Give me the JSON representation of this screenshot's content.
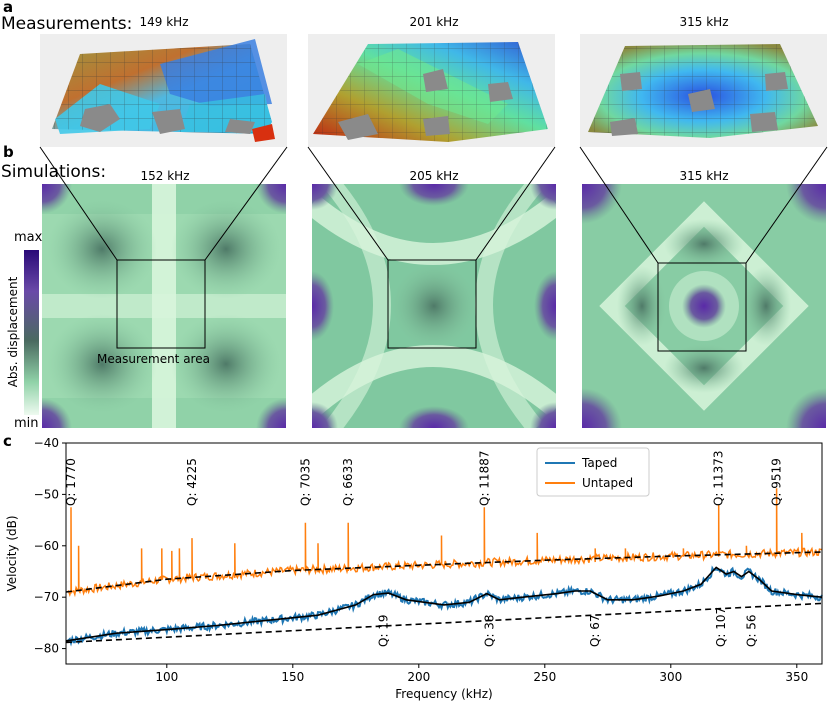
{
  "panel_a": {
    "letter": "a",
    "title": "Measurements:",
    "tiles": [
      {
        "freq": "149 kHz"
      },
      {
        "freq": "201 kHz"
      },
      {
        "freq": "315 kHz"
      }
    ]
  },
  "panel_b": {
    "letter": "b",
    "title": "Simulations:",
    "tiles": [
      {
        "freq": "152 kHz"
      },
      {
        "freq": "205 kHz"
      },
      {
        "freq": "315 kHz"
      }
    ],
    "measurement_area_label": "Measurement area",
    "colorbar": {
      "label": "Abs. displacement",
      "max": "max",
      "min": "min"
    }
  },
  "panel_c": {
    "letter": "c"
  },
  "chart_data": {
    "type": "line",
    "title": "",
    "xlabel": "Frequency (kHz)",
    "ylabel": "Velocity (dB)",
    "xlim": [
      60,
      360
    ],
    "ylim": [
      -83,
      -40
    ],
    "xticks": [
      100,
      150,
      200,
      250,
      300,
      350
    ],
    "yticks": [
      -80,
      -70,
      -60,
      -50,
      -40
    ],
    "legend": {
      "position": "top-right",
      "entries": [
        "Taped",
        "Untaped"
      ]
    },
    "series": [
      {
        "name": "Untaped",
        "color": "#ff7f0e",
        "baseline": {
          "x": [
            60,
            100,
            150,
            200,
            250,
            300,
            360
          ],
          "y": [
            -69,
            -66.5,
            -64.8,
            -63.8,
            -62.8,
            -62,
            -61.2
          ]
        },
        "peaks": [
          {
            "x": 62,
            "y": -52.5
          },
          {
            "x": 65,
            "y": -60
          },
          {
            "x": 90,
            "y": -60.5
          },
          {
            "x": 98,
            "y": -60.5
          },
          {
            "x": 102,
            "y": -61
          },
          {
            "x": 105,
            "y": -60.5
          },
          {
            "x": 110,
            "y": -58.5
          },
          {
            "x": 127,
            "y": -59.5
          },
          {
            "x": 155,
            "y": -55.5
          },
          {
            "x": 160,
            "y": -59.5
          },
          {
            "x": 172,
            "y": -55.5
          },
          {
            "x": 209,
            "y": -58
          },
          {
            "x": 226,
            "y": -52.5
          },
          {
            "x": 247,
            "y": -57.5
          },
          {
            "x": 270,
            "y": -60.5
          },
          {
            "x": 282,
            "y": -60.5
          },
          {
            "x": 305,
            "y": -60.5
          },
          {
            "x": 319,
            "y": -52
          },
          {
            "x": 330,
            "y": -60
          },
          {
            "x": 342,
            "y": -48.8
          },
          {
            "x": 352,
            "y": -57.5
          }
        ]
      },
      {
        "name": "Taped",
        "color": "#1f77b4",
        "x": [
          60,
          80,
          100,
          120,
          140,
          160,
          175,
          182,
          188,
          195,
          210,
          220,
          227,
          232,
          245,
          255,
          262,
          268,
          275,
          285,
          295,
          300,
          305,
          312,
          318,
          322,
          325,
          328,
          331,
          335,
          340,
          350,
          360
        ],
        "y": [
          -78.5,
          -77,
          -76.3,
          -75.5,
          -74.5,
          -73.5,
          -71.5,
          -69.5,
          -69.2,
          -70.5,
          -71.5,
          -71,
          -69.3,
          -70.5,
          -69.8,
          -69.3,
          -68.8,
          -68.8,
          -70.5,
          -70.5,
          -69.8,
          -69.3,
          -68.8,
          -67.5,
          -64.2,
          -65.5,
          -65,
          -66,
          -65,
          -66.5,
          -68.8,
          -69.5,
          -70
        ]
      },
      {
        "name": "Taped fit",
        "color": "#000000",
        "x": [
          60,
          80,
          100,
          120,
          140,
          160,
          175,
          182,
          188,
          195,
          210,
          220,
          227,
          232,
          245,
          255,
          262,
          268,
          275,
          285,
          295,
          300,
          305,
          312,
          318,
          322,
          325,
          328,
          331,
          335,
          340,
          350,
          360
        ],
        "y": [
          -78.5,
          -77,
          -76.3,
          -75.5,
          -74.5,
          -73.5,
          -71.5,
          -69.5,
          -69.2,
          -70.5,
          -71.5,
          -71,
          -69.3,
          -70.5,
          -69.8,
          -69.3,
          -68.8,
          -68.8,
          -70.5,
          -70.5,
          -69.8,
          -69.3,
          -68.8,
          -67.5,
          -64.2,
          -65.5,
          -65,
          -66,
          -65,
          -66.5,
          -68.8,
          -69.5,
          -70
        ]
      },
      {
        "name": "Untaped baseline fit",
        "style": "dashed",
        "color": "#000000",
        "x": [
          60,
          100,
          150,
          200,
          250,
          300,
          360
        ],
        "y": [
          -69,
          -66.5,
          -64.8,
          -63.8,
          -62.8,
          -62,
          -61.2
        ]
      },
      {
        "name": "Taped baseline fit",
        "style": "dashed",
        "color": "#000000",
        "x": [
          60,
          360
        ],
        "y": [
          -78.8,
          -71.2
        ]
      }
    ],
    "annotations_top": [
      {
        "text": "Q: 1770",
        "x": 62
      },
      {
        "text": "Q: 4225",
        "x": 110
      },
      {
        "text": "Q: 7035",
        "x": 155
      },
      {
        "text": "Q: 6633",
        "x": 172
      },
      {
        "text": "Q: 11887",
        "x": 226
      },
      {
        "text": "Q: 11373",
        "x": 319
      },
      {
        "text": "Q: 9519",
        "x": 342
      }
    ],
    "annotations_bottom": [
      {
        "text": "Q: 19",
        "x": 186
      },
      {
        "text": "Q: 38",
        "x": 228
      },
      {
        "text": "Q: 67",
        "x": 270
      },
      {
        "text": "Q: 107",
        "x": 320
      },
      {
        "text": "Q: 56",
        "x": 332
      }
    ]
  }
}
